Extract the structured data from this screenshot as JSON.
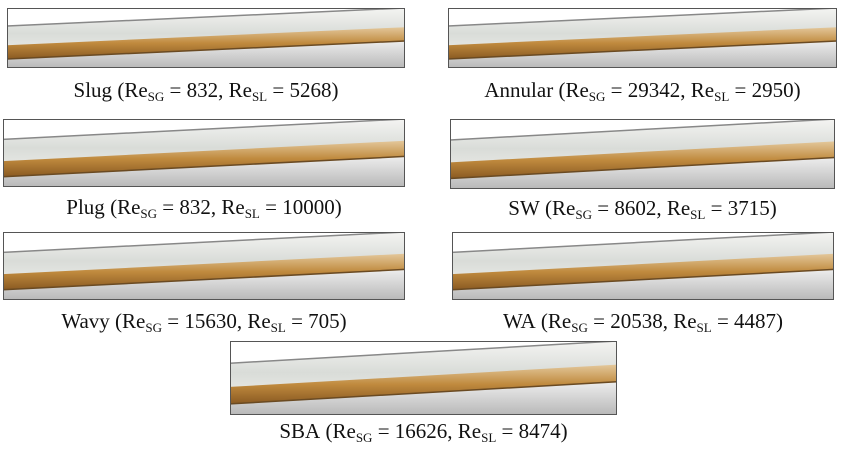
{
  "notation": {
    "symbol": "Re",
    "gas": "SG",
    "liquid": "SL",
    "open": "(",
    "equals": "=",
    "separator": ",",
    "close": ")"
  },
  "panels": [
    {
      "name": "Slug",
      "re_sg": 832,
      "re_sl": 5268
    },
    {
      "name": "Annular",
      "re_sg": 29342,
      "re_sl": 2950
    },
    {
      "name": "Plug",
      "re_sg": 832,
      "re_sl": 10000
    },
    {
      "name": "SW",
      "re_sg": 8602,
      "re_sl": 3715
    },
    {
      "name": "Wavy",
      "re_sg": 15630,
      "re_sl": 705
    },
    {
      "name": "WA",
      "re_sg": 20538,
      "re_sl": 4487
    },
    {
      "name": "SBA",
      "re_sg": 16626,
      "re_sl": 8474
    }
  ]
}
